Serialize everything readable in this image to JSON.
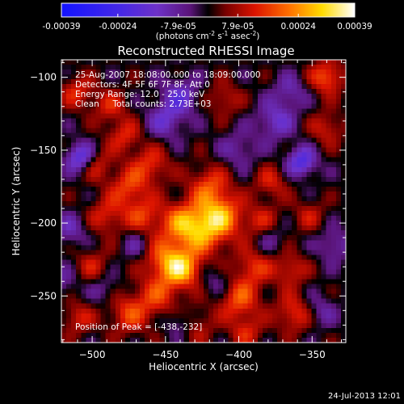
{
  "chart_data": {
    "type": "heatmap",
    "title": "Reconstructed RHESSI Image",
    "xlabel": "Heliocentric X (arcsec)",
    "ylabel": "Heliocentric Y (arcsec)",
    "xlim": [
      -521,
      -327
    ],
    "ylim": [
      -282,
      -88
    ],
    "x_ticks": [
      -500,
      -450,
      -400,
      -350
    ],
    "y_ticks": [
      -100,
      -150,
      -200,
      -250
    ],
    "colorbar": {
      "range": [
        -0.00039,
        0.00039
      ],
      "ticks": [
        "-0.00039",
        "-0.00024",
        "-7.9e-05",
        "7.9e-05",
        "0.00024",
        "0.00039"
      ],
      "unit_text": "(photons cm",
      "unit_sup1": "-2",
      "unit_mid": " s",
      "unit_sup2": "-1",
      "unit_end": " asec",
      "unit_sup3": "-2",
      "unit_close": ")"
    },
    "annotations": [
      "25-Aug-2007 18:08:00.000 to 18:09:00.000",
      "Detectors: 4F 5F 6F 7F 8F, Att 0",
      "Energy Range: 12.0 - 25.0 keV",
      "Clean     Total counts: 2.73E+03"
    ],
    "peak_label": "Position of Peak = [-438,-232]",
    "peak": [
      -438,
      -232
    ],
    "sources": [
      {
        "x": -438,
        "y": -232,
        "amp": 1.0,
        "w": 9
      },
      {
        "x": -425,
        "y": -205,
        "amp": 0.95,
        "w": 12
      },
      {
        "x": -440,
        "y": -200,
        "amp": 0.7,
        "w": 10
      },
      {
        "x": -412,
        "y": -195,
        "amp": 0.85,
        "w": 10
      },
      {
        "x": -420,
        "y": -175,
        "amp": 0.7,
        "w": 10
      },
      {
        "x": -450,
        "y": -225,
        "amp": 0.8,
        "w": 10
      },
      {
        "x": -465,
        "y": -195,
        "amp": 0.6,
        "w": 9
      },
      {
        "x": -475,
        "y": -175,
        "amp": 0.65,
        "w": 9
      },
      {
        "x": -460,
        "y": -160,
        "amp": 0.6,
        "w": 9
      },
      {
        "x": -478,
        "y": -140,
        "amp": 0.55,
        "w": 8
      },
      {
        "x": -490,
        "y": -195,
        "amp": 0.55,
        "w": 9
      },
      {
        "x": -497,
        "y": -160,
        "amp": 0.5,
        "w": 8
      },
      {
        "x": -500,
        "y": -230,
        "amp": 0.45,
        "w": 9
      },
      {
        "x": -510,
        "y": -110,
        "amp": 0.55,
        "w": 8
      },
      {
        "x": -488,
        "y": -120,
        "amp": 0.5,
        "w": 8
      },
      {
        "x": -475,
        "y": -262,
        "amp": 0.65,
        "w": 10
      },
      {
        "x": -455,
        "y": -250,
        "amp": 0.6,
        "w": 10
      },
      {
        "x": -400,
        "y": -252,
        "amp": 0.75,
        "w": 10
      },
      {
        "x": -390,
        "y": -230,
        "amp": 0.6,
        "w": 9
      },
      {
        "x": -385,
        "y": -200,
        "amp": 0.55,
        "w": 9
      },
      {
        "x": -378,
        "y": -172,
        "amp": 0.5,
        "w": 8
      },
      {
        "x": -365,
        "y": -232,
        "amp": 0.55,
        "w": 8
      },
      {
        "x": -362,
        "y": -262,
        "amp": 0.65,
        "w": 9
      },
      {
        "x": -340,
        "y": -100,
        "amp": 0.8,
        "w": 8
      },
      {
        "x": -410,
        "y": -115,
        "amp": 0.45,
        "w": 8
      },
      {
        "x": -340,
        "y": -135,
        "amp": 0.5,
        "w": 8
      },
      {
        "x": -352,
        "y": -195,
        "amp": 0.4,
        "w": 8
      },
      {
        "x": -430,
        "y": -270,
        "amp": 0.45,
        "w": 9
      },
      {
        "x": -510,
        "y": -265,
        "amp": 0.5,
        "w": 8
      },
      {
        "x": -395,
        "y": -275,
        "amp": 0.5,
        "w": 8
      },
      {
        "x": -508,
        "y": -155,
        "amp": -0.9,
        "w": 7
      },
      {
        "x": -357,
        "y": -158,
        "amp": -0.9,
        "w": 7
      },
      {
        "x": -450,
        "y": -130,
        "amp": -0.55,
        "w": 9
      },
      {
        "x": -440,
        "y": -113,
        "amp": -0.6,
        "w": 9
      },
      {
        "x": -375,
        "y": -130,
        "amp": -0.6,
        "w": 9
      },
      {
        "x": -365,
        "y": -110,
        "amp": -0.45,
        "w": 8
      },
      {
        "x": -380,
        "y": -210,
        "amp": -0.4,
        "w": 8
      },
      {
        "x": -515,
        "y": -205,
        "amp": -0.45,
        "w": 8
      },
      {
        "x": -492,
        "y": -245,
        "amp": -0.35,
        "w": 8
      },
      {
        "x": -440,
        "y": -268,
        "amp": -0.5,
        "w": 7
      },
      {
        "x": -415,
        "y": -240,
        "amp": -0.35,
        "w": 8
      },
      {
        "x": -345,
        "y": -260,
        "amp": -0.4,
        "w": 8
      },
      {
        "x": -470,
        "y": -215,
        "amp": -0.35,
        "w": 7
      },
      {
        "x": -400,
        "y": -150,
        "amp": -0.4,
        "w": 9
      },
      {
        "x": -335,
        "y": -215,
        "amp": -0.45,
        "w": 8
      },
      {
        "x": -520,
        "y": -240,
        "amp": -0.35,
        "w": 8
      }
    ]
  },
  "timestamp": "24-Jul-2013 12:01"
}
